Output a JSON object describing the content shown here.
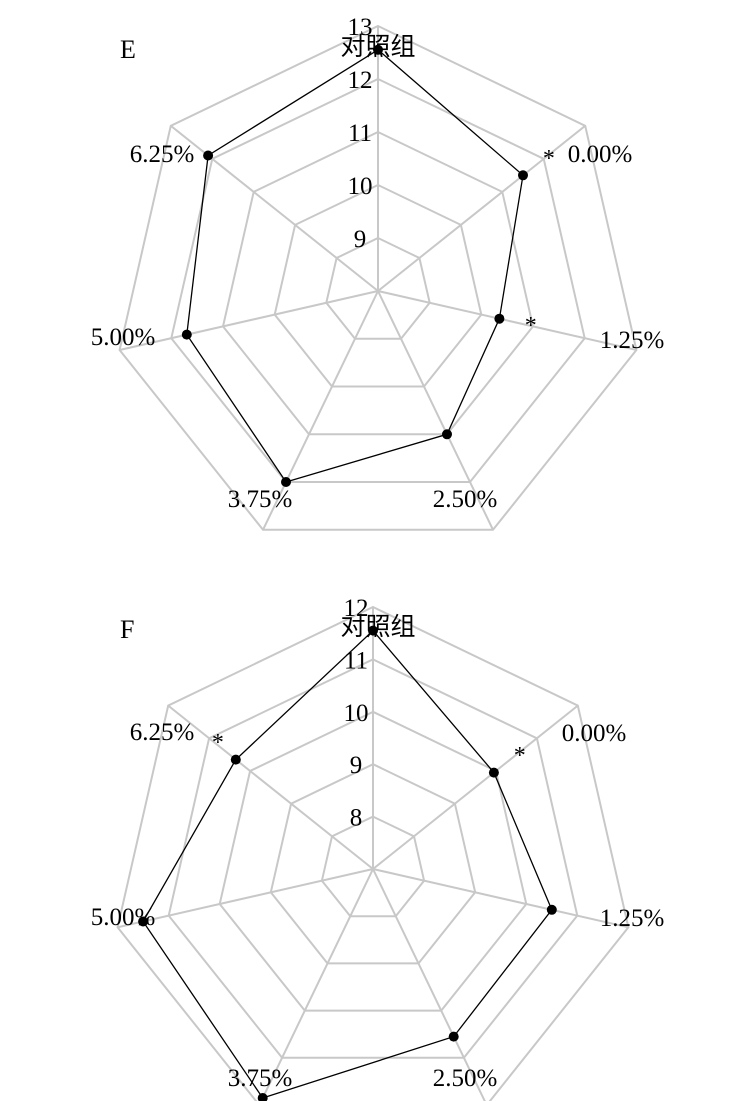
{
  "chart_data": [
    {
      "type": "radar",
      "panel_label": "E",
      "axes": [
        "对照组",
        "0.00%",
        "1.25%",
        "2.50%",
        "3.75%",
        "5.00%",
        "6.25%"
      ],
      "rlim": [
        8,
        13
      ],
      "ticks": [
        9,
        10,
        11,
        12,
        13
      ],
      "grid": true,
      "series": [
        {
          "values": [
            12.55,
            11.5,
            10.35,
            11.0,
            12.0,
            11.7,
            12.1
          ]
        }
      ],
      "significance": [
        "",
        "*",
        "*",
        "",
        "",
        "",
        ""
      ]
    },
    {
      "type": "radar",
      "panel_label": "F",
      "axes": [
        "对照组",
        "0.00%",
        "1.25%",
        "2.50%",
        "3.75%",
        "5.00%",
        "6.25%"
      ],
      "rlim": [
        7,
        12
      ],
      "ticks": [
        8,
        9,
        10,
        11,
        12
      ],
      "grid": true,
      "series": [
        {
          "values": [
            11.55,
            9.95,
            10.5,
            10.55,
            11.85,
            11.5,
            10.35
          ]
        }
      ],
      "significance": [
        "",
        "*",
        "",
        "",
        "",
        "",
        "*"
      ]
    }
  ]
}
